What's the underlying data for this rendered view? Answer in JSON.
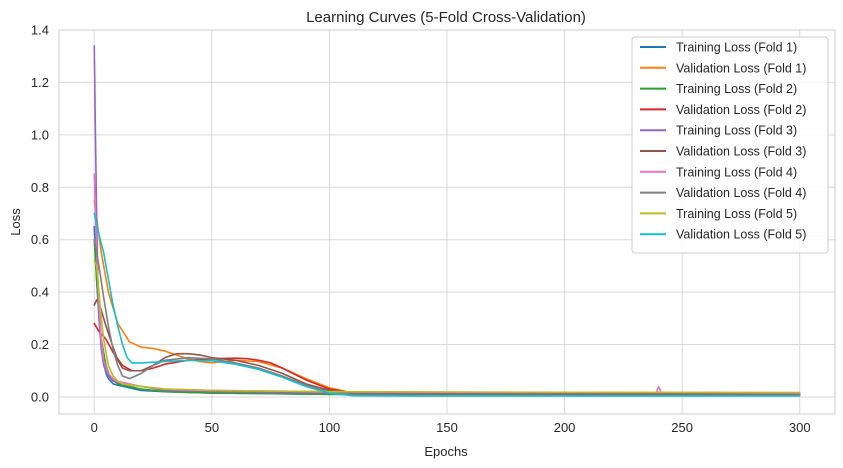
{
  "chart_data": {
    "type": "line",
    "title": "Learning Curves (5-Fold Cross-Validation)",
    "xlabel": "Epochs",
    "ylabel": "Loss",
    "xlim": [
      -15,
      315
    ],
    "ylim": [
      -0.065,
      1.4
    ],
    "xticks": [
      0,
      50,
      100,
      150,
      200,
      250,
      300
    ],
    "yticks": [
      0.0,
      0.2,
      0.4,
      0.6,
      0.8,
      1.0,
      1.2,
      1.4
    ],
    "xtick_labels": [
      "0",
      "50",
      "100",
      "150",
      "200",
      "250",
      "300"
    ],
    "ytick_labels": [
      "0.0",
      "0.2",
      "0.4",
      "0.6",
      "0.8",
      "1.0",
      "1.2",
      "1.4"
    ],
    "grid": true,
    "legend_position": "top-right",
    "series": [
      {
        "name": "Training Loss (Fold 1)",
        "color": "#1f77b4",
        "points": [
          [
            0,
            0.65
          ],
          [
            1,
            0.45
          ],
          [
            2,
            0.3
          ],
          [
            3,
            0.2
          ],
          [
            4,
            0.13
          ],
          [
            5,
            0.09
          ],
          [
            6,
            0.07
          ],
          [
            8,
            0.05
          ],
          [
            10,
            0.045
          ],
          [
            15,
            0.035
          ],
          [
            20,
            0.025
          ],
          [
            30,
            0.02
          ],
          [
            50,
            0.015
          ],
          [
            100,
            0.01
          ],
          [
            200,
            0.008
          ],
          [
            300,
            0.007
          ]
        ]
      },
      {
        "name": "Validation Loss (Fold 1)",
        "color": "#ff7f0e",
        "points": [
          [
            0,
            0.75
          ],
          [
            3,
            0.55
          ],
          [
            6,
            0.4
          ],
          [
            10,
            0.28
          ],
          [
            15,
            0.21
          ],
          [
            20,
            0.19
          ],
          [
            25,
            0.185
          ],
          [
            30,
            0.175
          ],
          [
            35,
            0.16
          ],
          [
            40,
            0.145
          ],
          [
            45,
            0.135
          ],
          [
            50,
            0.13
          ],
          [
            55,
            0.135
          ],
          [
            60,
            0.14
          ],
          [
            70,
            0.135
          ],
          [
            80,
            0.11
          ],
          [
            90,
            0.07
          ],
          [
            100,
            0.035
          ],
          [
            110,
            0.015
          ],
          [
            130,
            0.012
          ],
          [
            200,
            0.01
          ],
          [
            300,
            0.01
          ]
        ]
      },
      {
        "name": "Training Loss (Fold 2)",
        "color": "#2ca02c",
        "points": [
          [
            0,
            0.6
          ],
          [
            1,
            0.45
          ],
          [
            2,
            0.32
          ],
          [
            3,
            0.22
          ],
          [
            5,
            0.12
          ],
          [
            7,
            0.07
          ],
          [
            10,
            0.05
          ],
          [
            15,
            0.04
          ],
          [
            20,
            0.03
          ],
          [
            30,
            0.02
          ],
          [
            50,
            0.015
          ],
          [
            100,
            0.01
          ],
          [
            200,
            0.008
          ],
          [
            300,
            0.007
          ]
        ]
      },
      {
        "name": "Validation Loss (Fold 2)",
        "color": "#d62728",
        "points": [
          [
            0,
            0.28
          ],
          [
            2,
            0.25
          ],
          [
            5,
            0.22
          ],
          [
            8,
            0.17
          ],
          [
            12,
            0.12
          ],
          [
            16,
            0.1
          ],
          [
            20,
            0.1
          ],
          [
            25,
            0.11
          ],
          [
            30,
            0.125
          ],
          [
            40,
            0.14
          ],
          [
            50,
            0.145
          ],
          [
            55,
            0.147
          ],
          [
            60,
            0.148
          ],
          [
            65,
            0.146
          ],
          [
            70,
            0.14
          ],
          [
            75,
            0.13
          ],
          [
            80,
            0.11
          ],
          [
            90,
            0.065
          ],
          [
            100,
            0.03
          ],
          [
            110,
            0.015
          ],
          [
            130,
            0.012
          ],
          [
            200,
            0.01
          ],
          [
            300,
            0.01
          ]
        ]
      },
      {
        "name": "Training Loss (Fold 3)",
        "color": "#9467bd",
        "points": [
          [
            0,
            1.34
          ],
          [
            0.5,
            1.0
          ],
          [
            1,
            0.7
          ],
          [
            1.5,
            0.45
          ],
          [
            2,
            0.3
          ],
          [
            3,
            0.18
          ],
          [
            4,
            0.12
          ],
          [
            6,
            0.08
          ],
          [
            8,
            0.06
          ],
          [
            12,
            0.05
          ],
          [
            20,
            0.04
          ],
          [
            30,
            0.025
          ],
          [
            50,
            0.02
          ],
          [
            100,
            0.015
          ],
          [
            200,
            0.012
          ],
          [
            300,
            0.012
          ]
        ]
      },
      {
        "name": "Validation Loss (Fold 3)",
        "color": "#8c564b",
        "points": [
          [
            0,
            0.35
          ],
          [
            1,
            0.37
          ],
          [
            2,
            0.36
          ],
          [
            3,
            0.33
          ],
          [
            5,
            0.27
          ],
          [
            8,
            0.19
          ],
          [
            10,
            0.14
          ],
          [
            12,
            0.11
          ],
          [
            15,
            0.1
          ],
          [
            20,
            0.1
          ],
          [
            25,
            0.12
          ],
          [
            30,
            0.15
          ],
          [
            35,
            0.165
          ],
          [
            40,
            0.165
          ],
          [
            45,
            0.16
          ],
          [
            50,
            0.15
          ],
          [
            60,
            0.14
          ],
          [
            70,
            0.12
          ],
          [
            80,
            0.09
          ],
          [
            90,
            0.05
          ],
          [
            100,
            0.025
          ],
          [
            110,
            0.012
          ],
          [
            130,
            0.01
          ],
          [
            200,
            0.01
          ],
          [
            300,
            0.01
          ]
        ]
      },
      {
        "name": "Training Loss (Fold 4)",
        "color": "#e377c2",
        "points": [
          [
            0,
            0.85
          ],
          [
            1,
            0.55
          ],
          [
            2,
            0.35
          ],
          [
            3,
            0.22
          ],
          [
            4,
            0.14
          ],
          [
            6,
            0.09
          ],
          [
            8,
            0.07
          ],
          [
            10,
            0.06
          ],
          [
            15,
            0.05
          ],
          [
            20,
            0.04
          ],
          [
            30,
            0.03
          ],
          [
            50,
            0.025
          ],
          [
            100,
            0.02
          ],
          [
            150,
            0.018
          ],
          [
            200,
            0.017
          ],
          [
            239,
            0.017
          ],
          [
            240,
            0.04
          ],
          [
            241,
            0.017
          ],
          [
            300,
            0.015
          ]
        ]
      },
      {
        "name": "Validation Loss (Fold 4)",
        "color": "#7f7f7f",
        "points": [
          [
            0,
            0.6
          ],
          [
            2,
            0.5
          ],
          [
            4,
            0.38
          ],
          [
            6,
            0.27
          ],
          [
            8,
            0.18
          ],
          [
            10,
            0.12
          ],
          [
            12,
            0.08
          ],
          [
            15,
            0.07
          ],
          [
            20,
            0.09
          ],
          [
            25,
            0.12
          ],
          [
            30,
            0.14
          ],
          [
            40,
            0.15
          ],
          [
            50,
            0.145
          ],
          [
            60,
            0.13
          ],
          [
            70,
            0.11
          ],
          [
            80,
            0.08
          ],
          [
            90,
            0.045
          ],
          [
            100,
            0.02
          ],
          [
            110,
            0.01
          ],
          [
            130,
            0.008
          ],
          [
            200,
            0.007
          ],
          [
            300,
            0.007
          ]
        ]
      },
      {
        "name": "Training Loss (Fold 5)",
        "color": "#bcbd22",
        "points": [
          [
            0,
            0.52
          ],
          [
            1,
            0.5
          ],
          [
            2,
            0.4
          ],
          [
            3,
            0.3
          ],
          [
            4,
            0.22
          ],
          [
            6,
            0.12
          ],
          [
            8,
            0.08
          ],
          [
            10,
            0.06
          ],
          [
            12,
            0.05
          ],
          [
            15,
            0.045
          ],
          [
            20,
            0.04
          ],
          [
            30,
            0.03
          ],
          [
            50,
            0.025
          ],
          [
            100,
            0.02
          ],
          [
            200,
            0.018
          ],
          [
            300,
            0.017
          ]
        ]
      },
      {
        "name": "Validation Loss (Fold 5)",
        "color": "#17becf",
        "points": [
          [
            0,
            0.7
          ],
          [
            2,
            0.62
          ],
          [
            4,
            0.55
          ],
          [
            6,
            0.45
          ],
          [
            8,
            0.35
          ],
          [
            10,
            0.27
          ],
          [
            12,
            0.2
          ],
          [
            14,
            0.15
          ],
          [
            16,
            0.13
          ],
          [
            20,
            0.13
          ],
          [
            30,
            0.135
          ],
          [
            40,
            0.14
          ],
          [
            50,
            0.138
          ],
          [
            60,
            0.125
          ],
          [
            70,
            0.105
          ],
          [
            80,
            0.075
          ],
          [
            90,
            0.04
          ],
          [
            100,
            0.015
          ],
          [
            110,
            0.005
          ],
          [
            130,
            0.004
          ],
          [
            200,
            0.004
          ],
          [
            300,
            0.004
          ]
        ]
      }
    ]
  }
}
